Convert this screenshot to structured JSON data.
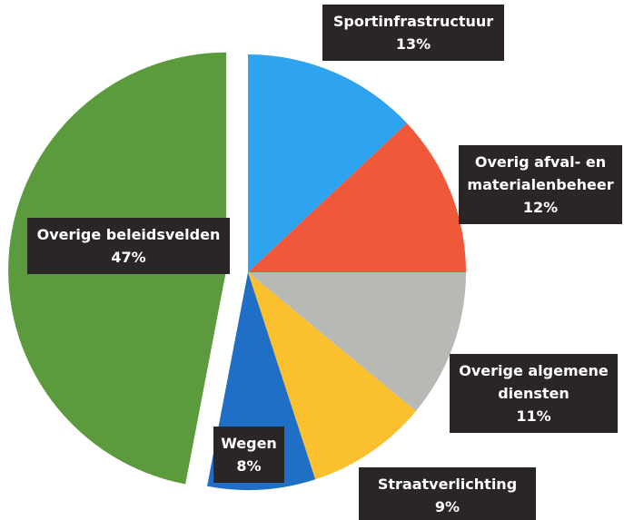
{
  "chart_data": {
    "type": "pie",
    "categories": [
      "Sportinfrastructuur",
      "Overig afval- en materialenbeheer",
      "Overige algemene diensten",
      "Straatverlichting",
      "Wegen",
      "Overige beleidsvelden"
    ],
    "values": [
      13,
      12,
      11,
      9,
      8,
      47
    ],
    "value_labels": [
      "13%",
      "12%",
      "11%",
      "9%",
      "8%",
      "47%"
    ],
    "colors": [
      "#2ea3f0",
      "#f0583a",
      "#b6b9b4",
      "#fbc02d",
      "#1f6fc6",
      "#5b9a3d"
    ],
    "exploded": [
      false,
      false,
      false,
      false,
      false,
      true
    ]
  }
}
